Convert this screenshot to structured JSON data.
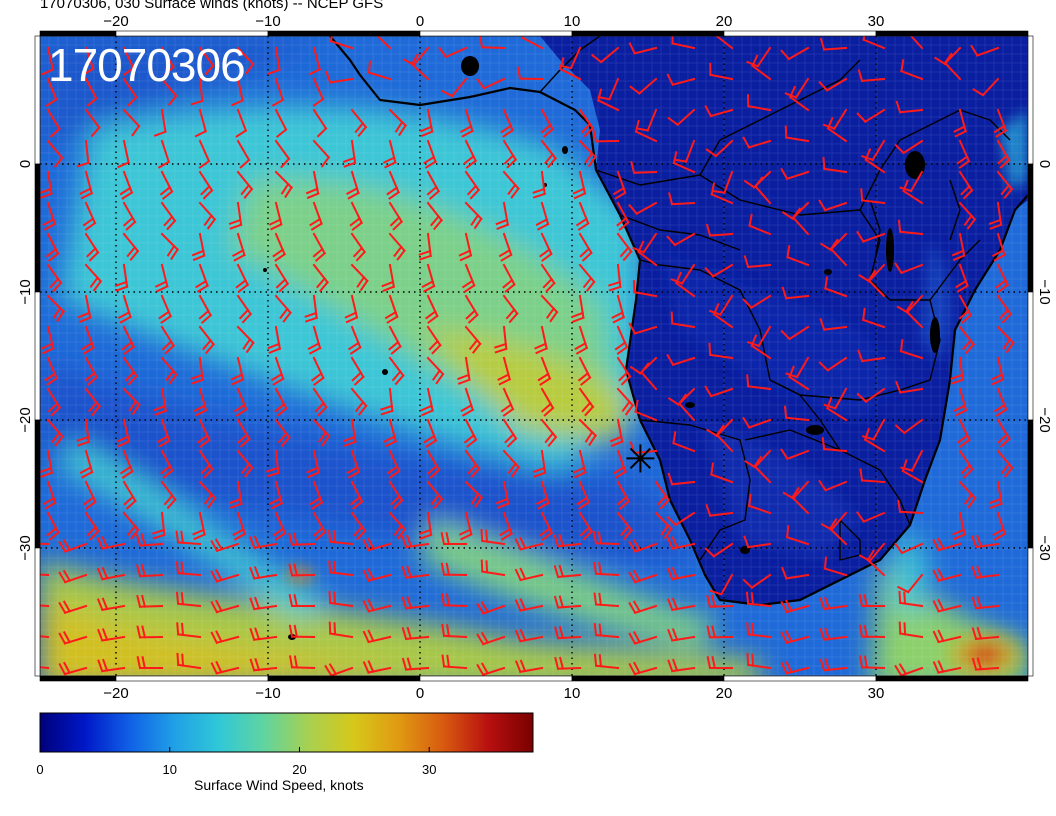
{
  "title": "17070306, 030 Surface winds (knots) -- NCEP GFS",
  "date_stamp": "17070306",
  "map": {
    "lon_range": [
      -25,
      40
    ],
    "lat_range": [
      -40,
      10
    ],
    "lon_ticks": [
      {
        "value": -20,
        "label": "−20"
      },
      {
        "value": -10,
        "label": "−10"
      },
      {
        "value": 0,
        "label": "0"
      },
      {
        "value": 10,
        "label": "10"
      },
      {
        "value": 20,
        "label": "20"
      },
      {
        "value": 30,
        "label": "30"
      }
    ],
    "lat_ticks": [
      {
        "value": 0,
        "label": "0"
      },
      {
        "value": -10,
        "label": "−10"
      },
      {
        "value": -20,
        "label": "−20"
      },
      {
        "value": -30,
        "label": "−30"
      }
    ],
    "grid": true,
    "barb_color": "#ff1a1a",
    "coast_color": "#000000",
    "marker": {
      "type": "star",
      "lon": 14.5,
      "lat": -23
    }
  },
  "colorbar": {
    "label": "Surface Wind Speed, knots",
    "min": 0,
    "max": 38,
    "ticks": [
      {
        "value": 0,
        "label": "0"
      },
      {
        "value": 10,
        "label": "10"
      },
      {
        "value": 20,
        "label": "20"
      },
      {
        "value": 30,
        "label": "30"
      }
    ],
    "colors": [
      "#00007a",
      "#0018c8",
      "#1060e6",
      "#20a0e6",
      "#30c8d8",
      "#60d4a0",
      "#a8d050",
      "#d6c81a",
      "#e09a12",
      "#d85a10",
      "#b81010",
      "#7a0000"
    ]
  }
}
